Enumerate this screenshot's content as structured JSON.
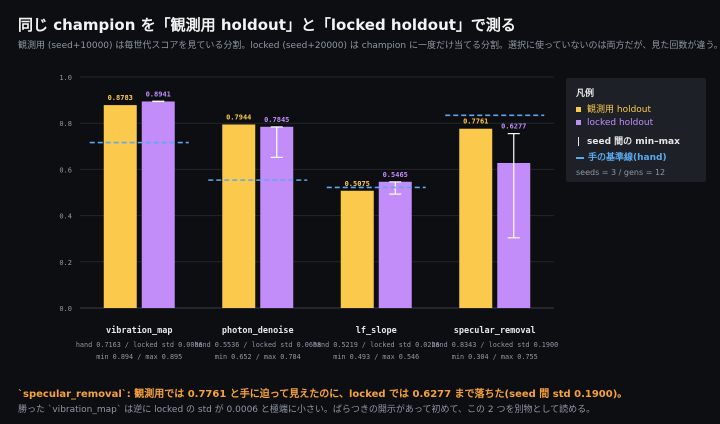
{
  "header": {
    "title": "同じ champion を「観測用 holdout」と「locked holdout」で測る",
    "subtitle": "観測用 (seed+10000) は毎世代スコアを見ている分割。locked (seed+20000) は champion に一度だけ当てる分割。選択に使っていないのは両方だが、見た回数が違う。"
  },
  "legend": {
    "title": "凡例",
    "items": [
      {
        "label": "観測用 holdout",
        "color": "#fbc94c",
        "marker": "square"
      },
      {
        "label": "locked holdout",
        "color": "#c28cf9",
        "marker": "square"
      },
      {
        "label": "seed 間の min–max",
        "color": "#e6e6e6",
        "marker": "bar"
      },
      {
        "label": "手の基準線(hand)",
        "color": "#5aa8ef",
        "marker": "dash"
      }
    ],
    "note": "seeds = 3 / gens = 12"
  },
  "chart_data": {
    "type": "bar",
    "ylim": [
      0,
      1.0
    ],
    "yticks": [
      "0.0",
      "0.2",
      "0.4",
      "0.6",
      "0.8",
      "1.0"
    ],
    "grid": true,
    "categories": [
      "vibration_map",
      "photon_denoise",
      "lf_slope",
      "specular_removal"
    ],
    "series": [
      {
        "name": "観測用 holdout",
        "color": "#fbc94c",
        "values": [
          0.8783,
          0.7944,
          0.5075,
          0.7761
        ],
        "labels": [
          "0.8783",
          "0.7944",
          "0.5075",
          "0.7761"
        ]
      },
      {
        "name": "locked holdout",
        "color": "#c28cf9",
        "values": [
          0.8941,
          0.7845,
          0.5465,
          0.6277
        ],
        "labels": [
          "0.8941",
          "0.7845",
          "0.5465",
          "0.6277"
        ],
        "min": [
          0.894,
          0.652,
          0.493,
          0.304
        ],
        "max": [
          0.895,
          0.784,
          0.546,
          0.755
        ]
      }
    ],
    "hand": [
      0.7163,
      0.5536,
      0.5219,
      0.8343
    ],
    "stats_line1": [
      "hand 0.7163 / locked std 0.0006",
      "hand 0.5536 / locked std 0.0608",
      "hand 0.5219 / locked std 0.0226",
      "hand 0.8343 / locked std 0.1900"
    ],
    "stats_line2": [
      "min 0.894 / max 0.895",
      "min 0.652 / max 0.784",
      "min 0.493 / max 0.546",
      "min 0.304 / max 0.755"
    ]
  },
  "footer": {
    "line1": "`specular_removal`: 観測用では 0.7761 と手に迫って見えたのに、locked では 0.6277 まで落ちた(seed 間 std 0.1900)。",
    "line2": "勝った `vibration_map` は逆に locked の std が 0.0006 と極端に小さい。ばらつきの開示があって初めて、この 2 つを別物として読める。"
  }
}
